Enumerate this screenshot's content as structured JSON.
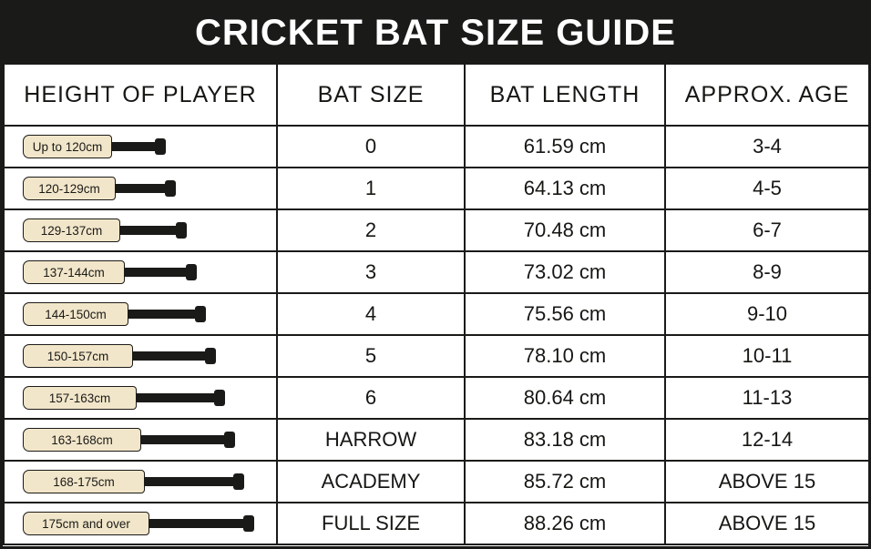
{
  "title": "CRICKET BAT SIZE GUIDE",
  "columns": [
    "HEIGHT OF PLAYER",
    "BAT SIZE",
    "BAT LENGTH",
    "APPROX. AGE"
  ],
  "rows": [
    {
      "height": "Up to 120cm",
      "size": "0",
      "length": "61.59 cm",
      "age": "3-4",
      "blade_width": 98,
      "handle_width": 48
    },
    {
      "height": "120-129cm",
      "size": "1",
      "length": "64.13 cm",
      "age": "4-5",
      "blade_width": 102,
      "handle_width": 55
    },
    {
      "height": "129-137cm",
      "size": "2",
      "length": "70.48 cm",
      "age": "6-7",
      "blade_width": 107,
      "handle_width": 62
    },
    {
      "height": "137-144cm",
      "size": "3",
      "length": "73.02 cm",
      "age": "8-9",
      "blade_width": 112,
      "handle_width": 68
    },
    {
      "height": "144-150cm",
      "size": "4",
      "length": "75.56 cm",
      "age": "9-10",
      "blade_width": 116,
      "handle_width": 74
    },
    {
      "height": "150-157cm",
      "size": "5",
      "length": "78.10 cm",
      "age": "10-11",
      "blade_width": 121,
      "handle_width": 80
    },
    {
      "height": "157-163cm",
      "size": "6",
      "length": "80.64 cm",
      "age": "11-13",
      "blade_width": 125,
      "handle_width": 86
    },
    {
      "height": "163-168cm",
      "size": "HARROW",
      "length": "83.18 cm",
      "age": "12-14",
      "blade_width": 130,
      "handle_width": 92
    },
    {
      "height": "168-175cm",
      "size": "ACADEMY",
      "length": "85.72 cm",
      "age": "ABOVE 15",
      "blade_width": 134,
      "handle_width": 98
    },
    {
      "height": "175cm and over",
      "size": "FULL SIZE",
      "length": "88.26 cm",
      "age": "ABOVE 15",
      "blade_width": 139,
      "handle_width": 104
    }
  ],
  "style": {
    "title_bg": "#1a1a18",
    "title_color": "#ffffff",
    "border_color": "#1a1a18",
    "blade_fill": "#f2e6ca",
    "handle_fill": "#1a1a18",
    "text_color": "#161613",
    "title_fontsize": 40,
    "header_fontsize": 25,
    "cell_fontsize": 22,
    "blade_fontsize": 13.5
  }
}
